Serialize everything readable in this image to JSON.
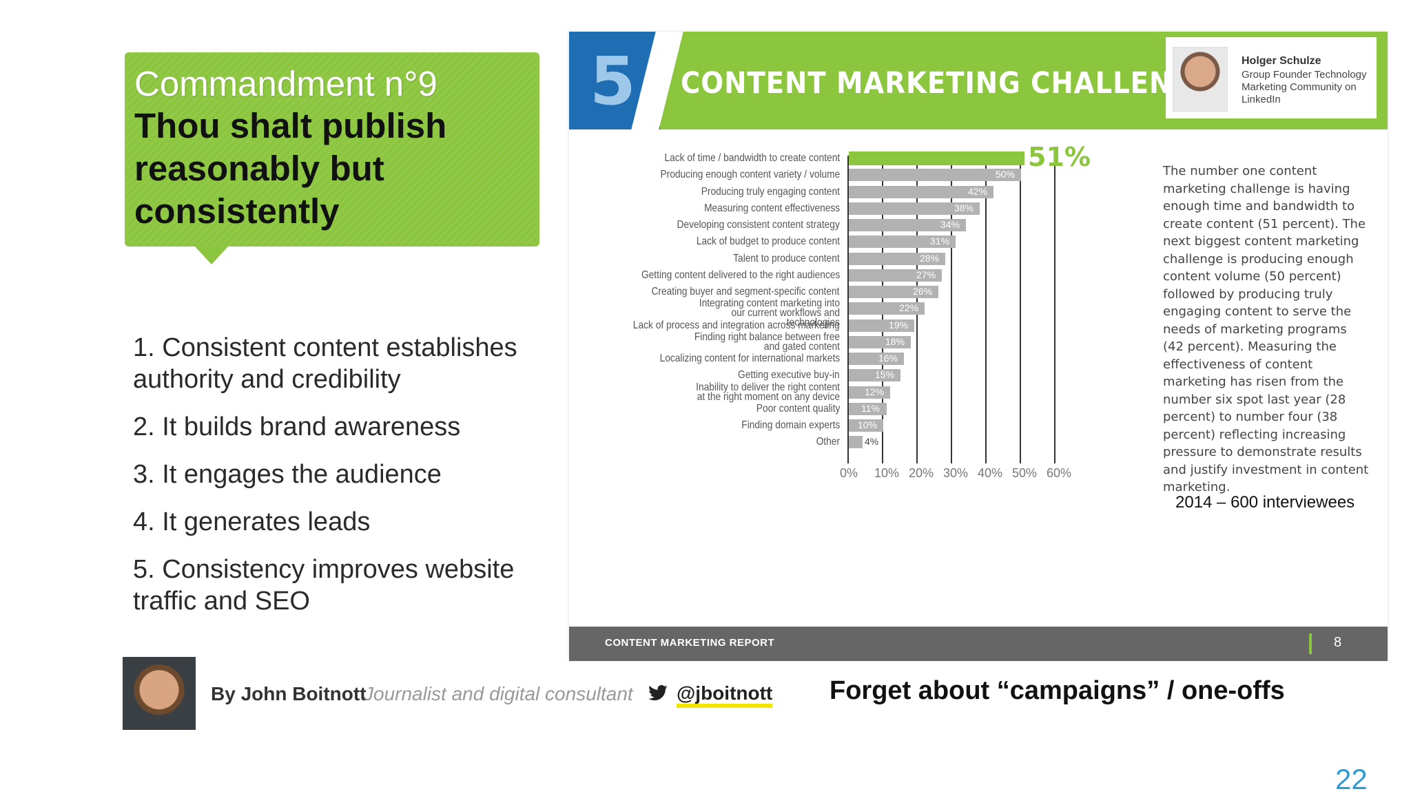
{
  "callout": {
    "title": "Commandment n°9",
    "body": "Thou shalt publish reasonably but consistently"
  },
  "points": [
    "1. Consistent content establishes authority and credibility",
    "2. It builds brand awareness",
    "3. It engages the audience",
    "4. It generates leads",
    "5. Consistency improves website traffic and SEO"
  ],
  "report": {
    "number": "5",
    "title": "CONTENT MARKETING CHALLENGES",
    "author_name": "Holger Schulze",
    "author_role": "Group Founder Technology Marketing Community on LinkedIn",
    "description": "The number one content marketing challenge is having enough time and bandwidth to create content (51 percent). The next biggest content marketing challenge is producing enough content volume (50 percent) followed by producing truly engaging content to serve the needs of marketing programs (42 percent). Measuring the effectiveness of content marketing has risen from the number six spot last year (28 percent) to number four (38 percent) reflecting increasing pressure to demonstrate results and justify investment in content marketing.",
    "footnote": "2014 – 600 interviewees",
    "footer_text": "CONTENT MARKETING REPORT",
    "footer_page": "8",
    "highlight_color": "#8cc63f",
    "bar_color": "#b2b2b2"
  },
  "chart_data": {
    "type": "bar",
    "orientation": "horizontal",
    "categories": [
      "Lack of time / bandwidth to create content",
      "Producing enough content variety / volume",
      "Producing truly engaging content",
      "Measuring content effectiveness",
      "Developing consistent content strategy",
      "Lack of budget to produce content",
      "Talent to produce content",
      "Getting content delivered to the right audiences",
      "Creating buyer and segment-specific content",
      "Integrating content marketing into our current workflows and technologies",
      "Lack of process and integration across marketing",
      "Finding right balance between free and gated content",
      "Localizing content for international markets",
      "Getting executive buy-in",
      "Inability to deliver the right content at the right moment on any device",
      "Poor content quality",
      "Finding domain experts",
      "Other"
    ],
    "values": [
      51,
      50,
      42,
      38,
      34,
      31,
      28,
      27,
      26,
      22,
      19,
      18,
      16,
      15,
      12,
      11,
      10,
      4
    ],
    "value_labels": [
      "51%",
      "50%",
      "42%",
      "38%",
      "34%",
      "31%",
      "28%",
      "27%",
      "26%",
      "22%",
      "19%",
      "18%",
      "16%",
      "15%",
      "12%",
      "11%",
      "10%",
      "4%"
    ],
    "xlim": [
      0,
      60
    ],
    "xticks": [
      "0%",
      "10%",
      "20%",
      "30%",
      "40%",
      "50%",
      "60%"
    ],
    "grid": true
  },
  "byline": {
    "name": "By John Boitnott",
    "role": "Journalist and digital consultant",
    "handle": "@jboitnott"
  },
  "tagline": "Forget about “campaigns” / one-offs",
  "slide_number": "22"
}
